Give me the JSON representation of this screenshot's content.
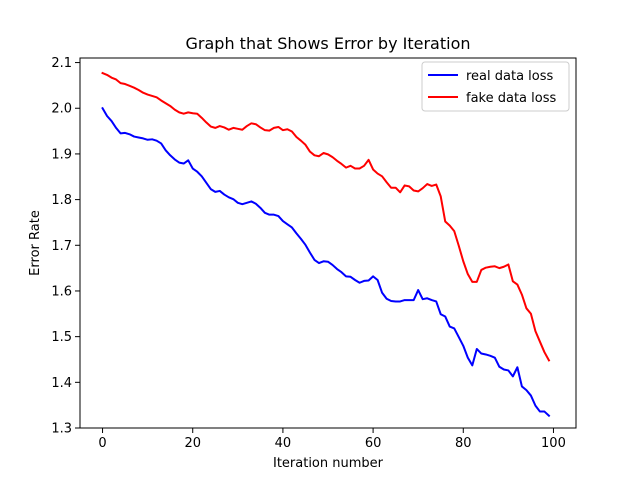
{
  "chart_data": {
    "type": "line",
    "title": "Graph that Shows Error by Iteration",
    "xlabel": "Iteration number",
    "ylabel": "Error Rate",
    "xlim": [
      -5,
      105
    ],
    "ylim": [
      1.3,
      2.11
    ],
    "xticks": [
      "0",
      "20",
      "40",
      "60",
      "80",
      "100"
    ],
    "yticks": [
      "1.3",
      "1.4",
      "1.5",
      "1.6",
      "1.7",
      "1.8",
      "1.9",
      "2.0",
      "2.1"
    ],
    "grid": false,
    "legend_position": "top-right",
    "series": [
      {
        "name": "real data loss",
        "color": "#0000ff",
        "x": [
          0,
          1,
          2,
          3,
          4,
          5,
          6,
          7,
          8,
          9,
          10,
          11,
          12,
          13,
          14,
          15,
          16,
          17,
          18,
          19,
          20,
          21,
          22,
          23,
          24,
          25,
          26,
          27,
          28,
          29,
          30,
          31,
          32,
          33,
          34,
          35,
          36,
          37,
          38,
          39,
          40,
          41,
          42,
          43,
          44,
          45,
          46,
          47,
          48,
          49,
          50,
          51,
          52,
          53,
          54,
          55,
          56,
          57,
          58,
          59,
          60,
          61,
          62,
          63,
          64,
          65,
          66,
          67,
          68,
          69,
          70,
          71,
          72,
          73,
          74,
          75,
          76,
          77,
          78,
          79,
          80,
          81,
          82,
          83,
          84,
          85,
          86,
          87,
          88,
          89,
          90,
          91,
          92,
          93,
          94,
          95,
          96,
          97,
          98,
          99
        ],
        "y": [
          2.0,
          1.983,
          1.972,
          1.957,
          1.945,
          1.946,
          1.943,
          1.938,
          1.936,
          1.934,
          1.931,
          1.932,
          1.929,
          1.923,
          1.908,
          1.897,
          1.888,
          1.881,
          1.879,
          1.886,
          1.868,
          1.861,
          1.851,
          1.837,
          1.823,
          1.817,
          1.819,
          1.811,
          1.805,
          1.801,
          1.793,
          1.79,
          1.793,
          1.796,
          1.791,
          1.782,
          1.771,
          1.767,
          1.767,
          1.764,
          1.753,
          1.746,
          1.739,
          1.726,
          1.714,
          1.701,
          1.684,
          1.668,
          1.661,
          1.665,
          1.664,
          1.657,
          1.648,
          1.641,
          1.632,
          1.631,
          1.624,
          1.618,
          1.622,
          1.623,
          1.632,
          1.624,
          1.596,
          1.583,
          1.578,
          1.577,
          1.577,
          1.58,
          1.58,
          1.58,
          1.602,
          1.582,
          1.584,
          1.58,
          1.577,
          1.549,
          1.544,
          1.522,
          1.518,
          1.499,
          1.48,
          1.454,
          1.437,
          1.473,
          1.463,
          1.461,
          1.458,
          1.454,
          1.434,
          1.428,
          1.426,
          1.413,
          1.433,
          1.391,
          1.383,
          1.371,
          1.349,
          1.336,
          1.336,
          1.327
        ]
      },
      {
        "name": "fake data loss",
        "color": "#ff0000",
        "x": [
          0,
          1,
          2,
          3,
          4,
          5,
          6,
          7,
          8,
          9,
          10,
          11,
          12,
          13,
          14,
          15,
          16,
          17,
          18,
          19,
          20,
          21,
          22,
          23,
          24,
          25,
          26,
          27,
          28,
          29,
          30,
          31,
          32,
          33,
          34,
          35,
          36,
          37,
          38,
          39,
          40,
          41,
          42,
          43,
          44,
          45,
          46,
          47,
          48,
          49,
          50,
          51,
          52,
          53,
          54,
          55,
          56,
          57,
          58,
          59,
          60,
          61,
          62,
          63,
          64,
          65,
          66,
          67,
          68,
          69,
          70,
          71,
          72,
          73,
          74,
          75,
          76,
          77,
          78,
          79,
          80,
          81,
          82,
          83,
          84,
          85,
          86,
          87,
          88,
          89,
          90,
          91,
          92,
          93,
          94,
          95,
          96,
          97,
          98,
          99
        ],
        "y": [
          2.077,
          2.073,
          2.067,
          2.063,
          2.055,
          2.053,
          2.049,
          2.045,
          2.04,
          2.034,
          2.03,
          2.027,
          2.024,
          2.017,
          2.011,
          2.005,
          1.997,
          1.991,
          1.988,
          1.991,
          1.989,
          1.988,
          1.979,
          1.969,
          1.96,
          1.957,
          1.961,
          1.958,
          1.953,
          1.957,
          1.955,
          1.953,
          1.961,
          1.967,
          1.965,
          1.958,
          1.952,
          1.951,
          1.957,
          1.959,
          1.952,
          1.954,
          1.949,
          1.937,
          1.929,
          1.92,
          1.905,
          1.897,
          1.895,
          1.902,
          1.899,
          1.893,
          1.885,
          1.878,
          1.87,
          1.874,
          1.868,
          1.868,
          1.874,
          1.887,
          1.866,
          1.857,
          1.851,
          1.838,
          1.826,
          1.826,
          1.816,
          1.831,
          1.829,
          1.82,
          1.818,
          1.825,
          1.834,
          1.83,
          1.833,
          1.807,
          1.752,
          1.743,
          1.731,
          1.699,
          1.665,
          1.637,
          1.62,
          1.62,
          1.646,
          1.651,
          1.653,
          1.654,
          1.65,
          1.653,
          1.658,
          1.621,
          1.614,
          1.592,
          1.562,
          1.55,
          1.512,
          1.489,
          1.466,
          1.448
        ]
      }
    ]
  }
}
